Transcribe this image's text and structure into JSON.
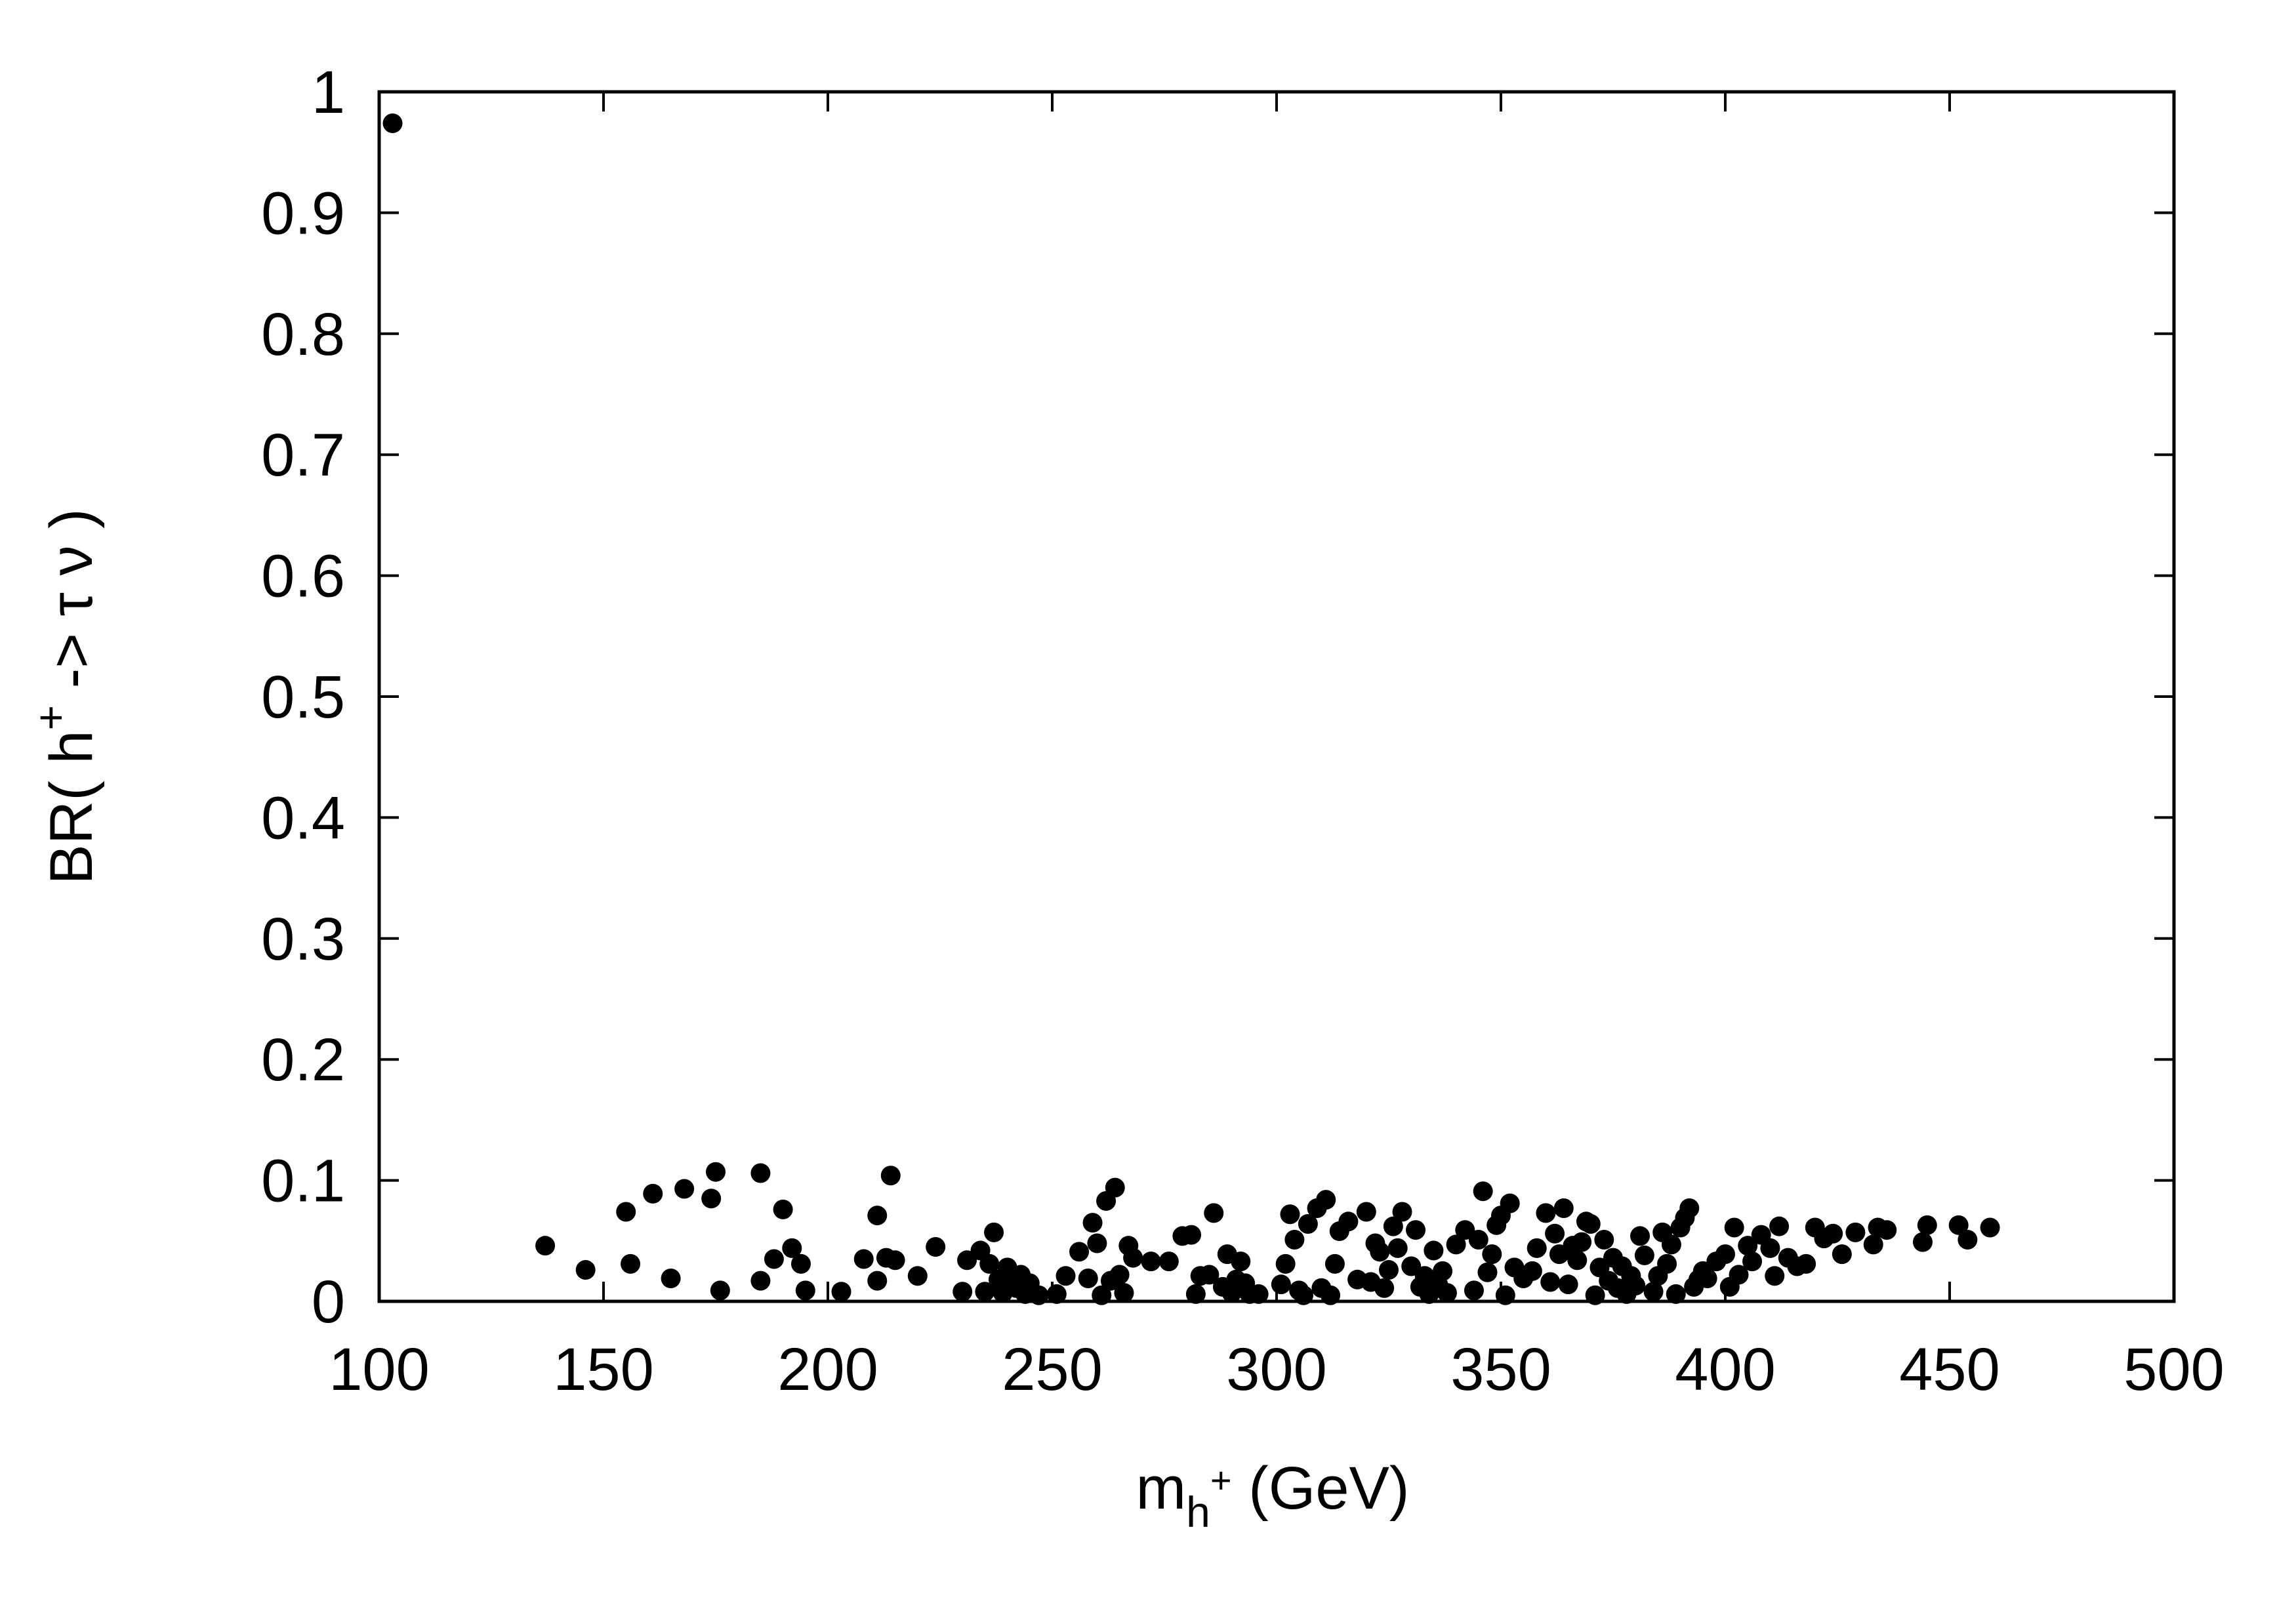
{
  "chart_data": {
    "type": "scatter",
    "title": "",
    "xlabel": {
      "base": "m",
      "sub": "h",
      "sup": "+",
      "rest": " (GeV)"
    },
    "ylabel": {
      "pre": "BR( h",
      "sup": "+",
      "post": " -> τ ν )"
    },
    "xlim": [
      100,
      500
    ],
    "ylim": [
      0,
      1
    ],
    "xticks": [
      100,
      150,
      200,
      250,
      300,
      350,
      400,
      450,
      500
    ],
    "yticks": [
      0,
      0.1,
      0.2,
      0.3,
      0.4,
      0.5,
      0.6,
      0.7,
      0.8,
      0.9,
      1
    ],
    "ytick_labels": [
      "0",
      "0.1",
      "0.2",
      "0.3",
      "0.4",
      "0.5",
      "0.6",
      "0.7",
      "0.8",
      "0.9",
      "1"
    ],
    "grid": false,
    "marker_color": "#000000",
    "points": [
      [
        103,
        0.974
      ],
      [
        137,
        0.046
      ],
      [
        146,
        0.026
      ],
      [
        155,
        0.074
      ],
      [
        156,
        0.031
      ],
      [
        161,
        0.089
      ],
      [
        165,
        0.019
      ],
      [
        168,
        0.093
      ],
      [
        174,
        0.085
      ],
      [
        175,
        0.107
      ],
      [
        176,
        0.009
      ],
      [
        185,
        0.017
      ],
      [
        185,
        0.106
      ],
      [
        188,
        0.035
      ],
      [
        190,
        0.076
      ],
      [
        192,
        0.044
      ],
      [
        194,
        0.031
      ],
      [
        195,
        0.009
      ],
      [
        203,
        0.008
      ],
      [
        208,
        0.035
      ],
      [
        211,
        0.017
      ],
      [
        211,
        0.071
      ],
      [
        213,
        0.036
      ],
      [
        214,
        0.104
      ],
      [
        215,
        0.034
      ],
      [
        220,
        0.021
      ],
      [
        224,
        0.045
      ],
      [
        230,
        0.008
      ],
      [
        231,
        0.034
      ],
      [
        234,
        0.042
      ],
      [
        235,
        0.008
      ],
      [
        236,
        0.031
      ],
      [
        237,
        0.057
      ],
      [
        238,
        0.018
      ],
      [
        239,
        0.007
      ],
      [
        240,
        0.028
      ],
      [
        241,
        0.016
      ],
      [
        242,
        0.011
      ],
      [
        243,
        0.022
      ],
      [
        244,
        0.006
      ],
      [
        245,
        0.015
      ],
      [
        247,
        0.005
      ],
      [
        251,
        0.006
      ],
      [
        253,
        0.021
      ],
      [
        256,
        0.041
      ],
      [
        258,
        0.019
      ],
      [
        259,
        0.065
      ],
      [
        260,
        0.048
      ],
      [
        261,
        0.005
      ],
      [
        262,
        0.083
      ],
      [
        263,
        0.017
      ],
      [
        264,
        0.094
      ],
      [
        265,
        0.022
      ],
      [
        266,
        0.007
      ],
      [
        267,
        0.046
      ],
      [
        268,
        0.036
      ],
      [
        272,
        0.033
      ],
      [
        276,
        0.033
      ],
      [
        279,
        0.054
      ],
      [
        281,
        0.055
      ],
      [
        282,
        0.006
      ],
      [
        283,
        0.021
      ],
      [
        285,
        0.022
      ],
      [
        286,
        0.073
      ],
      [
        288,
        0.012
      ],
      [
        289,
        0.039
      ],
      [
        290,
        0.007
      ],
      [
        291,
        0.018
      ],
      [
        292,
        0.033
      ],
      [
        293,
        0.015
      ],
      [
        294,
        0.006
      ],
      [
        296,
        0.006
      ],
      [
        301,
        0.014
      ],
      [
        302,
        0.031
      ],
      [
        303,
        0.072
      ],
      [
        304,
        0.051
      ],
      [
        305,
        0.009
      ],
      [
        306,
        0.005
      ],
      [
        307,
        0.064
      ],
      [
        309,
        0.077
      ],
      [
        310,
        0.011
      ],
      [
        311,
        0.084
      ],
      [
        312,
        0.005
      ],
      [
        313,
        0.031
      ],
      [
        314,
        0.058
      ],
      [
        316,
        0.066
      ],
      [
        318,
        0.018
      ],
      [
        320,
        0.074
      ],
      [
        321,
        0.016
      ],
      [
        322,
        0.048
      ],
      [
        323,
        0.041
      ],
      [
        324,
        0.011
      ],
      [
        325,
        0.026
      ],
      [
        326,
        0.062
      ],
      [
        327,
        0.044
      ],
      [
        328,
        0.074
      ],
      [
        330,
        0.029
      ],
      [
        331,
        0.059
      ],
      [
        332,
        0.012
      ],
      [
        333,
        0.021
      ],
      [
        334,
        0.006
      ],
      [
        335,
        0.042
      ],
      [
        336,
        0.014
      ],
      [
        337,
        0.025
      ],
      [
        338,
        0.007
      ],
      [
        340,
        0.047
      ],
      [
        342,
        0.059
      ],
      [
        344,
        0.009
      ],
      [
        345,
        0.051
      ],
      [
        346,
        0.091
      ],
      [
        347,
        0.024
      ],
      [
        348,
        0.039
      ],
      [
        349,
        0.063
      ],
      [
        350,
        0.071
      ],
      [
        351,
        0.005
      ],
      [
        352,
        0.081
      ],
      [
        353,
        0.028
      ],
      [
        355,
        0.019
      ],
      [
        357,
        0.025
      ],
      [
        358,
        0.044
      ],
      [
        360,
        0.073
      ],
      [
        361,
        0.016
      ],
      [
        362,
        0.056
      ],
      [
        363,
        0.039
      ],
      [
        364,
        0.077
      ],
      [
        365,
        0.014
      ],
      [
        366,
        0.046
      ],
      [
        367,
        0.034
      ],
      [
        368,
        0.049
      ],
      [
        369,
        0.066
      ],
      [
        370,
        0.064
      ],
      [
        371,
        0.005
      ],
      [
        372,
        0.028
      ],
      [
        373,
        0.051
      ],
      [
        374,
        0.017
      ],
      [
        375,
        0.036
      ],
      [
        376,
        0.011
      ],
      [
        377,
        0.029
      ],
      [
        378,
        0.006
      ],
      [
        379,
        0.021
      ],
      [
        380,
        0.013
      ],
      [
        381,
        0.054
      ],
      [
        382,
        0.038
      ],
      [
        384,
        0.008
      ],
      [
        385,
        0.021
      ],
      [
        386,
        0.057
      ],
      [
        387,
        0.031
      ],
      [
        388,
        0.047
      ],
      [
        389,
        0.006
      ],
      [
        390,
        0.061
      ],
      [
        391,
        0.069
      ],
      [
        392,
        0.077
      ],
      [
        393,
        0.012
      ],
      [
        394,
        0.018
      ],
      [
        395,
        0.025
      ],
      [
        396,
        0.019
      ],
      [
        398,
        0.033
      ],
      [
        400,
        0.039
      ],
      [
        401,
        0.012
      ],
      [
        402,
        0.061
      ],
      [
        403,
        0.022
      ],
      [
        405,
        0.046
      ],
      [
        406,
        0.033
      ],
      [
        408,
        0.055
      ],
      [
        410,
        0.044
      ],
      [
        411,
        0.021
      ],
      [
        412,
        0.062
      ],
      [
        414,
        0.036
      ],
      [
        416,
        0.029
      ],
      [
        418,
        0.031
      ],
      [
        420,
        0.061
      ],
      [
        422,
        0.052
      ],
      [
        424,
        0.056
      ],
      [
        426,
        0.039
      ],
      [
        429,
        0.057
      ],
      [
        433,
        0.047
      ],
      [
        434,
        0.061
      ],
      [
        436,
        0.059
      ],
      [
        444,
        0.049
      ],
      [
        445,
        0.063
      ],
      [
        452,
        0.063
      ],
      [
        454,
        0.051
      ],
      [
        459,
        0.061
      ]
    ]
  }
}
